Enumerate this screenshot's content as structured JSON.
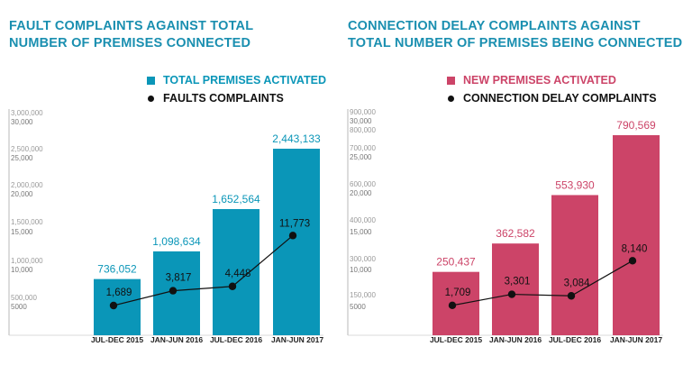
{
  "chart_data": [
    {
      "type": "bar",
      "title_line1": "FAULT COMPLAINTS AGAINST TOTAL",
      "title_line2": "NUMBER OF PREMISES CONNECTED",
      "categories": [
        "JUL-DEC 2015",
        "JAN-JUN 2016",
        "JUL-DEC 2016",
        "JAN-JUN 2017"
      ],
      "series": [
        {
          "name": "TOTAL PREMISES ACTIVATED",
          "kind": "bar",
          "axis": "left",
          "values": [
            736052,
            1098634,
            1652564,
            2443133
          ],
          "labels": [
            "736,052",
            "1,098,634",
            "1,652,564",
            "2,443,133"
          ]
        },
        {
          "name": "FAULTS COMPLAINTS",
          "kind": "line",
          "axis": "right",
          "values": [
            1689,
            3817,
            4448,
            11773
          ],
          "labels": [
            "1,689",
            "3,817",
            "4,448",
            "11,773"
          ]
        }
      ],
      "y_left_ticks": [
        "3,000,000",
        "2,500,000",
        "2,000,000",
        "1,500,000",
        "1,000,000",
        "500,000"
      ],
      "y_right_ticks": [
        "30,000",
        "25,000",
        "20,000",
        "15,000",
        "10,000",
        "5000"
      ],
      "ylim_left": [
        0,
        3000000
      ],
      "ylim_right": [
        0,
        30000
      ],
      "grid": false,
      "legend": "top-right",
      "color": "#0a96b8"
    },
    {
      "type": "bar",
      "title_line1": "CONNECTION DELAY COMPLAINTS AGAINST",
      "title_line2": "TOTAL NUMBER OF PREMISES BEING CONNECTED",
      "categories": [
        "JUL-DEC 2015",
        "JAN-JUN 2016",
        "JUL-DEC 2016",
        "JAN-JUN 2017"
      ],
      "series": [
        {
          "name": "NEW PREMISES ACTIVATED",
          "kind": "bar",
          "axis": "left",
          "values": [
            250437,
            362582,
            553930,
            790569
          ],
          "labels": [
            "250,437",
            "362,582",
            "553,930",
            "790,569"
          ]
        },
        {
          "name": "CONNECTION DELAY COMPLAINTS",
          "kind": "line",
          "axis": "right",
          "values": [
            1709,
            3301,
            3084,
            8140
          ],
          "labels": [
            "1,709",
            "3,301",
            "3,084",
            "8,140"
          ]
        }
      ],
      "y_left_ticks": [
        "900,000",
        "800,000",
        "700,000",
        "600,000",
        "400,000",
        "300,000",
        "150,000"
      ],
      "y_right_ticks": [
        "30,000",
        "25,000",
        "20,000",
        "15,000",
        "10,000",
        "5000"
      ],
      "ylim_right": [
        0,
        30000
      ],
      "grid": false,
      "legend": "top-right",
      "color": "#cc4468"
    }
  ]
}
